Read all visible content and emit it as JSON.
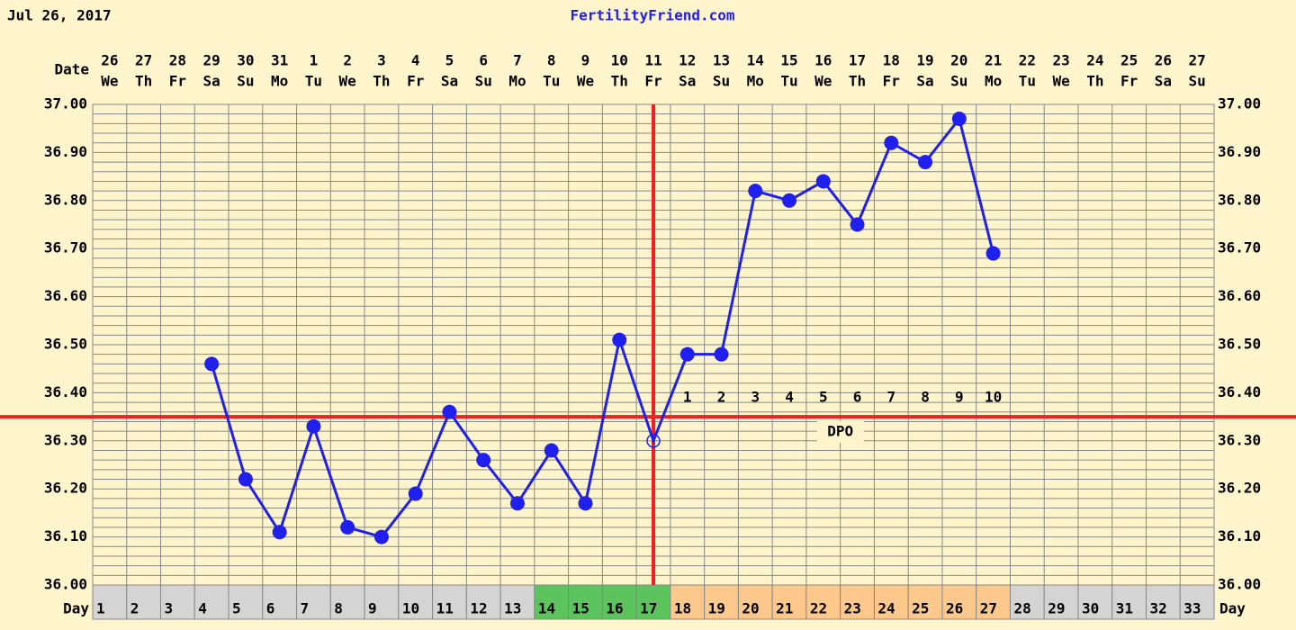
{
  "chart_data": {
    "type": "line",
    "date": "Jul 26, 2017",
    "site": "FertilityFriend.com",
    "date_label": "Date",
    "day_label": "Day",
    "x": [
      1,
      2,
      3,
      4,
      5,
      6,
      7,
      8,
      9,
      10,
      11,
      12,
      13,
      14,
      15,
      16,
      17,
      18,
      19,
      20,
      21,
      22,
      23,
      24,
      25,
      26,
      27,
      28,
      29,
      30,
      31,
      32,
      33
    ],
    "dates": [
      26,
      27,
      28,
      29,
      30,
      31,
      1,
      2,
      3,
      4,
      5,
      6,
      7,
      8,
      9,
      10,
      11,
      12,
      13,
      14,
      15,
      16,
      17,
      18,
      19,
      20,
      21,
      22,
      23,
      24,
      25,
      26,
      27
    ],
    "weekdays": [
      "We",
      "Th",
      "Fr",
      "Sa",
      "Su",
      "Mo",
      "Tu",
      "We",
      "Th",
      "Fr",
      "Sa",
      "Su",
      "Mo",
      "Tu",
      "We",
      "Th",
      "Fr",
      "Sa",
      "Su",
      "Mo",
      "Tu",
      "We",
      "Th",
      "Fr",
      "Sa",
      "Su",
      "Mo",
      "Tu",
      "We",
      "Th",
      "Fr",
      "Sa",
      "Su"
    ],
    "day_colors": [
      "#d4d4d4",
      "#d4d4d4",
      "#d4d4d4",
      "#d4d4d4",
      "#d4d4d4",
      "#d4d4d4",
      "#d4d4d4",
      "#d4d4d4",
      "#d4d4d4",
      "#d4d4d4",
      "#d4d4d4",
      "#d4d4d4",
      "#d4d4d4",
      "#5cc45c",
      "#5cc45c",
      "#5cc45c",
      "#5cc45c",
      "#fcc88c",
      "#fcc88c",
      "#fcc88c",
      "#fcc88c",
      "#fcc88c",
      "#fcc88c",
      "#fcc88c",
      "#fcc88c",
      "#fcc88c",
      "#fcc88c",
      "#d4d4d4",
      "#d4d4d4",
      "#d4d4d4",
      "#d4d4d4",
      "#d4d4d4",
      "#d4d4d4"
    ],
    "series": [
      {
        "color": "#2020ee",
        "values": [
          null,
          null,
          null,
          36.46,
          36.22,
          36.11,
          36.33,
          36.12,
          36.1,
          36.19,
          36.36,
          36.26,
          36.17,
          36.28,
          36.17,
          36.51,
          36.3,
          36.48,
          36.48,
          36.82,
          36.8,
          36.84,
          36.75,
          36.92,
          36.88,
          36.97,
          36.69,
          null,
          null,
          null,
          null,
          null,
          null
        ]
      }
    ],
    "hollow_days": [
      17
    ],
    "coverline": 36.35,
    "ovulation_day": 17,
    "line_color": "#ee2020",
    "dpo_labels": [
      1,
      2,
      3,
      4,
      5,
      6,
      7,
      8,
      9,
      10
    ],
    "dpo_label": "DPO",
    "ylim": [
      36.0,
      37.0
    ],
    "yticks": [
      {
        "value": 36.0,
        "label": "36.00"
      },
      {
        "value": 36.1,
        "label": "36.10"
      },
      {
        "value": 36.2,
        "label": "36.20"
      },
      {
        "value": 36.3,
        "label": "36.30"
      },
      {
        "value": 36.4,
        "label": "36.40"
      },
      {
        "value": 36.5,
        "label": "36.50"
      },
      {
        "value": 36.6,
        "label": "36.60"
      },
      {
        "value": 36.7,
        "label": "36.70"
      },
      {
        "value": 36.8,
        "label": "36.80"
      },
      {
        "value": 36.9,
        "label": "36.90"
      },
      {
        "value": 37.0,
        "label": "37.00"
      }
    ],
    "grid": true
  }
}
